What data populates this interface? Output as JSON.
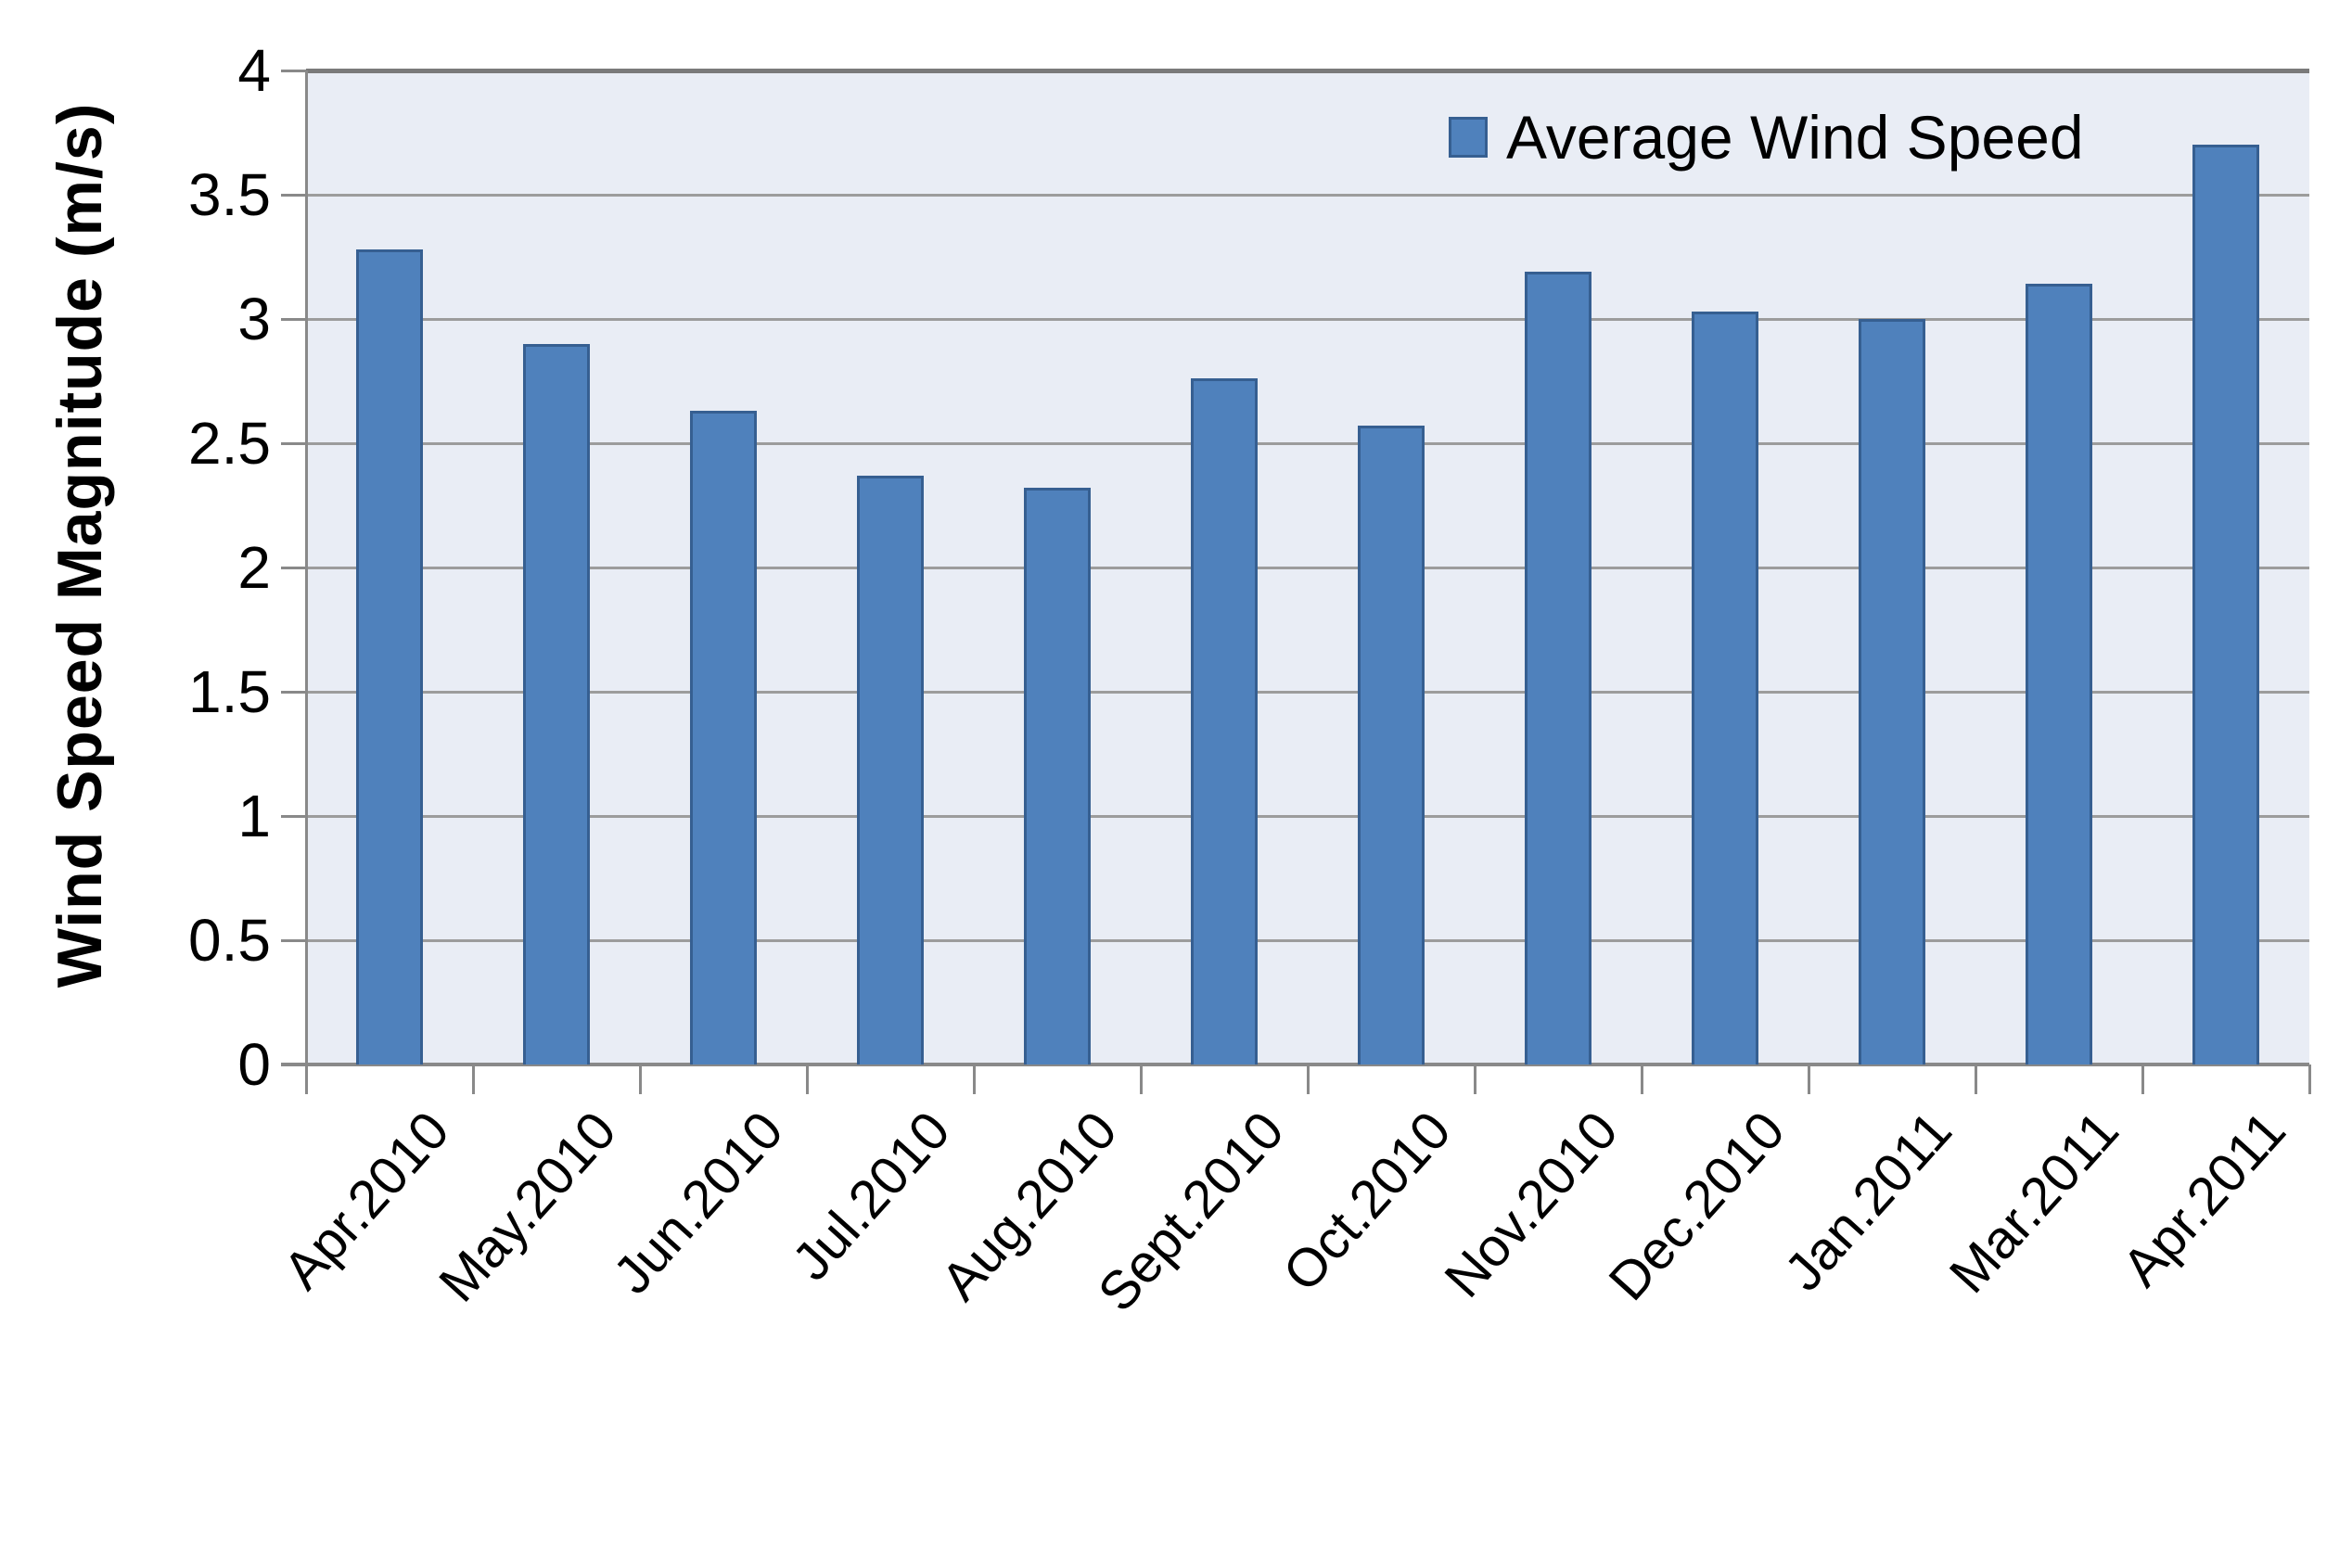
{
  "chart_data": {
    "type": "bar",
    "title": "",
    "categories": [
      "Apr.2010",
      "May.2010",
      "Jun.2010",
      "Jul.2010",
      "Aug.2010",
      "Sept.2010",
      "Oct.2010",
      "Nov.2010",
      "Dec.2010",
      "Jan.2011",
      "Mar.2011",
      "Apr.2011"
    ],
    "series": [
      {
        "name": "Average Wind Speed",
        "values": [
          3.28,
          2.9,
          2.63,
          2.37,
          2.32,
          2.76,
          2.57,
          3.19,
          3.03,
          3.0,
          3.14,
          3.7
        ]
      }
    ],
    "xlabel": "",
    "ylabel": "Wind Speed Magnitude (m/s)",
    "ylim": [
      0,
      4
    ],
    "ytick_step": 0.5,
    "ytick_labels": [
      "0",
      "0.5",
      "1",
      "1.5",
      "2",
      "2.5",
      "3",
      "3.5",
      "4"
    ],
    "grid": "horizontal",
    "legend": {
      "position": "top-right-inside"
    },
    "colors": {
      "bar_fill": "#4f81bc",
      "bar_border": "#365f91",
      "plot_background": "#e9edf5",
      "gridline": "#9c9c9c",
      "gridline_top": "#7a7a7a",
      "axis": "#898989",
      "text": "#000000",
      "outer_background": "#ffffff"
    }
  }
}
